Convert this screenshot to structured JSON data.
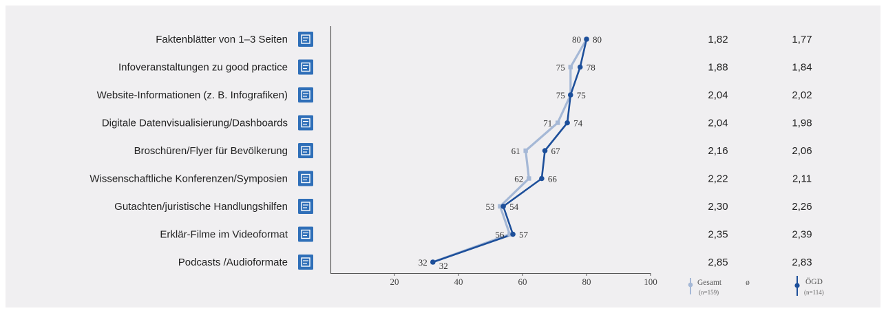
{
  "chart_data": {
    "type": "line",
    "categories": [
      "Faktenblätter von 1–3 Seiten",
      "Infoveranstaltungen zu good practice",
      "Website-Informationen (z. B. Infografiken)",
      "Digitale Datenvisualisierung/Dashboards",
      "Broschüren/Flyer für Bevölkerung",
      "Wissenschaftliche Konferenzen/Symposien",
      "Gutachten/juristische Handlungshilfen",
      "Erklär-Filme im Videoformat",
      "Podcasts /Audioformate"
    ],
    "category_icons": [
      "document-search-icon",
      "group-presentation-icon",
      "infographic-screen-icon",
      "dashboard-magnifier-icon",
      "open-book-icon",
      "lecture-speaker-icon",
      "legal-document-icon",
      "video-explainer-icon",
      "audio-wave-icon"
    ],
    "series": [
      {
        "name": "Gesamt",
        "sample": "(n=159)",
        "color": "#a5b8d6",
        "values": [
          80,
          75,
          75,
          71,
          61,
          62,
          53,
          56,
          32
        ],
        "averages": [
          "1,82",
          "1,88",
          "2,04",
          "2,04",
          "2,16",
          "2,22",
          "2,30",
          "2,35",
          "2,85"
        ]
      },
      {
        "name": "ÖGD",
        "sample": "(n=114)",
        "color": "#1d4f9a",
        "values": [
          80,
          78,
          75,
          74,
          67,
          66,
          54,
          57,
          32
        ],
        "averages": [
          "1,77",
          "1,84",
          "2,02",
          "1,98",
          "2,06",
          "2,11",
          "2,26",
          "2,39",
          "2,83"
        ]
      }
    ],
    "x_axis": {
      "min": 0,
      "max": 100,
      "ticks": [
        20,
        40,
        60,
        80,
        100
      ]
    },
    "avg_symbol": "ø",
    "icon_color": "#2f6fb8"
  }
}
